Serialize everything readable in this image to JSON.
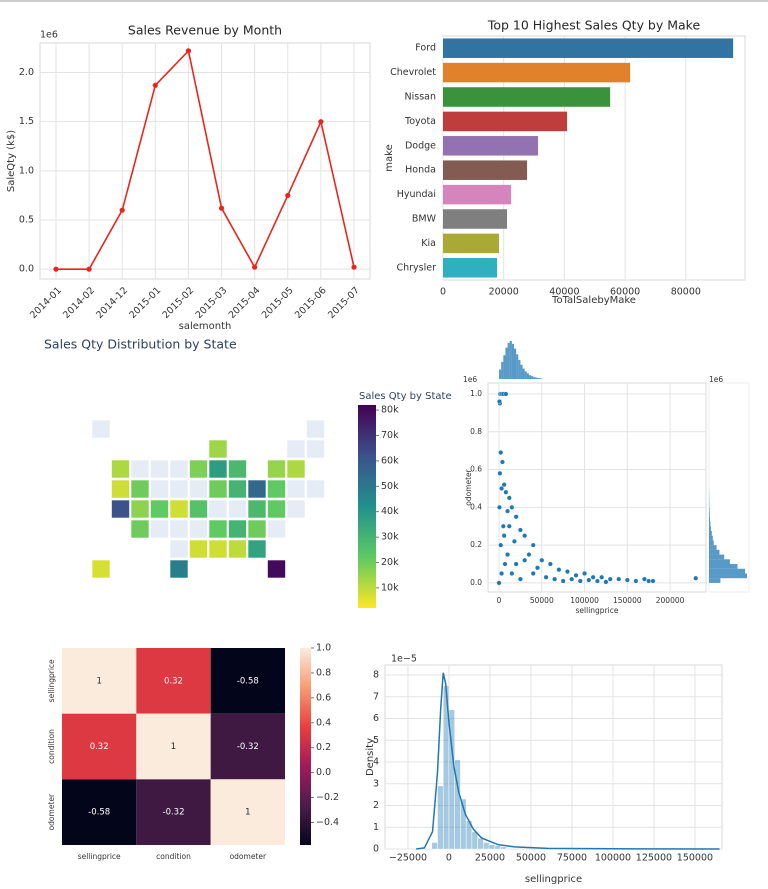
{
  "chart_data": [
    {
      "type": "line",
      "title": "Sales Revenue by Month",
      "offset_label": "1e6",
      "xlabel": "salemonth",
      "ylabel": "SaleQty (k$)",
      "categories": [
        "2014-01",
        "2014-02",
        "2014-12",
        "2015-01",
        "2015-02",
        "2015-03",
        "2015-04",
        "2015-05",
        "2015-06",
        "2015-07"
      ],
      "values": [
        0.0,
        0.0,
        0.6,
        1.87,
        2.22,
        0.62,
        0.02,
        0.75,
        1.5,
        0.02
      ],
      "color": "#e8261f",
      "ylim": [
        -0.1,
        2.3
      ],
      "yticks": [
        {
          "value": 0,
          "label": "0.0"
        },
        0.5,
        {
          "value": 1,
          "label": "1.0"
        },
        1.5,
        {
          "value": 2,
          "label": "2.0"
        }
      ],
      "grid": true
    },
    {
      "type": "bar",
      "orientation": "horizontal",
      "title": "Top 10 Highest Sales Qty by Make",
      "xlabel": "ToTalSalebyMake",
      "ylabel": "make",
      "categories": [
        "Ford",
        "Chevrolet",
        "Nissan",
        "Toyota",
        "Dodge",
        "Honda",
        "Hyundai",
        "BMW",
        "Kia",
        "Chrysler"
      ],
      "values": [
        95600,
        61650,
        55060,
        40880,
        31320,
        27700,
        22420,
        21100,
        18460,
        17800
      ],
      "colors": [
        "#3274a1",
        "#e1812c",
        "#3a923a",
        "#c03d3e",
        "#9372b2",
        "#845b53",
        "#d684bd",
        "#7f7f7f",
        "#a9aa35",
        "#2eb0c1"
      ],
      "xlim": [
        0,
        99500
      ],
      "xticks": [
        0,
        20000,
        40000,
        60000,
        80000
      ],
      "grid": true
    },
    {
      "type": "choropleth",
      "title": "Sales Qty Distribution by State",
      "colorbar_title": "Sales Qty by State",
      "values": [
        null,
        null,
        14000,
        null,
        null,
        12000,
        null,
        null,
        null,
        18000,
        38000,
        28000,
        15000,
        12000,
        8000,
        20000,
        null,
        null,
        null,
        20000,
        30000,
        55000,
        22000,
        null,
        null,
        62000,
        16000,
        22000,
        8000,
        25000,
        null,
        null,
        28000,
        22000,
        null,
        20000,
        null,
        null,
        null,
        22000,
        30000,
        20000,
        null,
        null,
        8000,
        8000,
        10000,
        36000,
        7000,
        48000,
        80000
      ],
      "zlim": [
        2100,
        82000
      ],
      "zticks": [
        {
          "value": 10000,
          "label": "10k"
        },
        {
          "value": 20000,
          "label": "20k"
        },
        {
          "value": 30000,
          "label": "30k"
        },
        {
          "value": 40000,
          "label": "40k"
        },
        {
          "value": 50000,
          "label": "50k"
        },
        {
          "value": 60000,
          "label": "60k"
        },
        {
          "value": 70000,
          "label": "70k"
        },
        {
          "value": 80000,
          "label": "80k"
        }
      ],
      "colorscale": [
        "#fde725",
        "#5ec962",
        "#21918c",
        "#3b528b",
        "#440154"
      ],
      "missing_color": "#e5ecf6"
    },
    {
      "type": "scatter",
      "xlabel": "sellingprice",
      "ylabel": "odometer",
      "offset_label": "1e6",
      "marginal_offset_label": "1e6",
      "color": "#1f77b4",
      "x": [
        1000,
        1500,
        3000,
        5000,
        8000,
        500,
        2000,
        4000,
        1000,
        6000,
        3000,
        8000,
        12000,
        15000,
        10000,
        20000,
        5000,
        25000,
        30000,
        18000,
        40000,
        35000,
        50000,
        60000,
        45000,
        70000,
        80000,
        100000,
        90000,
        110000,
        120000,
        130000,
        140000,
        150000,
        160000,
        175000,
        230000,
        2000,
        7000,
        15000,
        25000,
        10000,
        500,
        3000,
        20000,
        40000,
        55000,
        65000,
        75000,
        85000,
        95000,
        105000,
        115000,
        125000,
        170000,
        180000,
        0,
        6000,
        12000,
        30000
      ],
      "values": [
        0.95,
        1,
        1,
        1,
        1,
        0.96,
        0.69,
        0.64,
        0.58,
        0.52,
        0.5,
        0.48,
        0.45,
        0.4,
        0.38,
        0.35,
        0.3,
        0.28,
        0.25,
        0.22,
        0.2,
        0.15,
        0.12,
        0.1,
        0.08,
        0.07,
        0.06,
        0.05,
        0.04,
        0.03,
        0.03,
        0.02,
        0.02,
        0.015,
        0.01,
        0.01,
        0.025,
        0.2,
        0.1,
        0.05,
        0.02,
        0.15,
        0.4,
        0.05,
        0.1,
        0.05,
        0.03,
        0.02,
        0.01,
        0.02,
        0.01,
        0.015,
        0.01,
        0.005,
        0.02,
        0.01,
        0,
        0.25,
        0.3,
        0.12
      ],
      "xlim": [
        -12900,
        242000
      ],
      "ylim": [
        -0.048,
        1.058
      ],
      "xticks": [
        0,
        50000,
        100000,
        150000,
        200000
      ],
      "yticks": [
        {
          "value": 0,
          "label": "0.0"
        },
        0.2,
        0.4,
        0.6,
        0.8,
        {
          "value": 1,
          "label": "1.0"
        }
      ],
      "x_hist": {
        "bins": [
          0,
          2500,
          5000,
          7500,
          10000,
          12500,
          15000,
          17500,
          20000,
          22500,
          25000,
          27500,
          30000,
          32500,
          35000,
          37500,
          40000,
          42500,
          45000,
          47500,
          50000
        ],
        "counts": [
          10,
          18,
          25,
          33,
          38,
          40,
          37,
          32,
          26,
          20,
          15,
          11,
          8,
          6,
          4,
          3,
          2,
          1.5,
          1,
          0.7
        ]
      },
      "y_hist": {
        "bins": [
          0,
          0.025,
          0.05,
          0.075,
          0.1,
          0.125,
          0.15,
          0.175,
          0.2,
          0.225,
          0.25,
          0.275,
          0.3,
          0.325,
          0.35,
          0.375,
          0.4,
          0.425,
          0.45,
          0.475,
          0.5
        ],
        "counts": [
          12,
          40,
          38,
          30,
          22,
          16,
          11,
          8,
          5,
          4,
          3,
          2,
          1.5,
          1,
          0.8,
          0.6,
          0.4,
          0.3,
          0.2,
          0.15
        ]
      },
      "grid": true
    },
    {
      "type": "heatmap",
      "categories": [
        "sellingprice",
        "condition",
        "odometer"
      ],
      "values": [
        [
          1,
          0.32,
          -0.58
        ],
        [
          0.32,
          1,
          -0.32
        ],
        [
          -0.58,
          -0.32,
          1
        ]
      ],
      "zlim": [
        -0.58,
        1
      ],
      "zticks": [
        {
          "value": -0.4,
          "label": "−0.4"
        },
        {
          "value": -0.2,
          "label": "−0.2"
        },
        {
          "value": 0,
          "label": "0.0"
        },
        0.2,
        0.4,
        0.6,
        0.8,
        {
          "value": 1,
          "label": "1.0"
        }
      ],
      "colorscale": [
        "#03051a",
        "#4c1d4b",
        "#a11a5b",
        "#e83f3f",
        "#f69c73",
        "#faebdd"
      ]
    },
    {
      "type": "histogram",
      "xlabel": "sellingprice",
      "ylabel": "Density",
      "offset_label": "1e−5",
      "color": "#1f77b4",
      "bins": [
        -10500,
        -7000,
        -3500,
        0,
        3500,
        7000,
        10500,
        14000,
        17500,
        21000,
        24500,
        28000,
        31500,
        35000
      ],
      "counts": [
        0.3,
        2.9,
        7.5,
        6.4,
        4.1,
        2.3,
        1.3,
        0.8,
        0.5,
        0.3,
        0.2,
        0.15,
        0.1
      ],
      "kde_x": [
        -20000,
        -15000,
        -10000,
        -7000,
        -5000,
        -3500,
        -2000,
        0,
        3000,
        6000,
        10000,
        15000,
        20000,
        30000,
        40000,
        60000,
        100000,
        165000
      ],
      "kde_y": [
        0,
        0.05,
        0.8,
        3.5,
        6.5,
        8.1,
        7.6,
        5.8,
        3.8,
        2.6,
        1.6,
        0.9,
        0.5,
        0.2,
        0.1,
        0.03,
        0.01,
        0
      ],
      "xlim": [
        -39000,
        166500
      ],
      "ylim": [
        0,
        8.46
      ],
      "xticks": [
        {
          "value": -25000,
          "label": "−25000"
        },
        0,
        25000,
        50000,
        75000,
        100000,
        125000,
        150000
      ],
      "yticks": [
        0,
        1,
        2,
        3,
        4,
        5,
        6,
        7,
        8
      ],
      "grid": true
    }
  ]
}
